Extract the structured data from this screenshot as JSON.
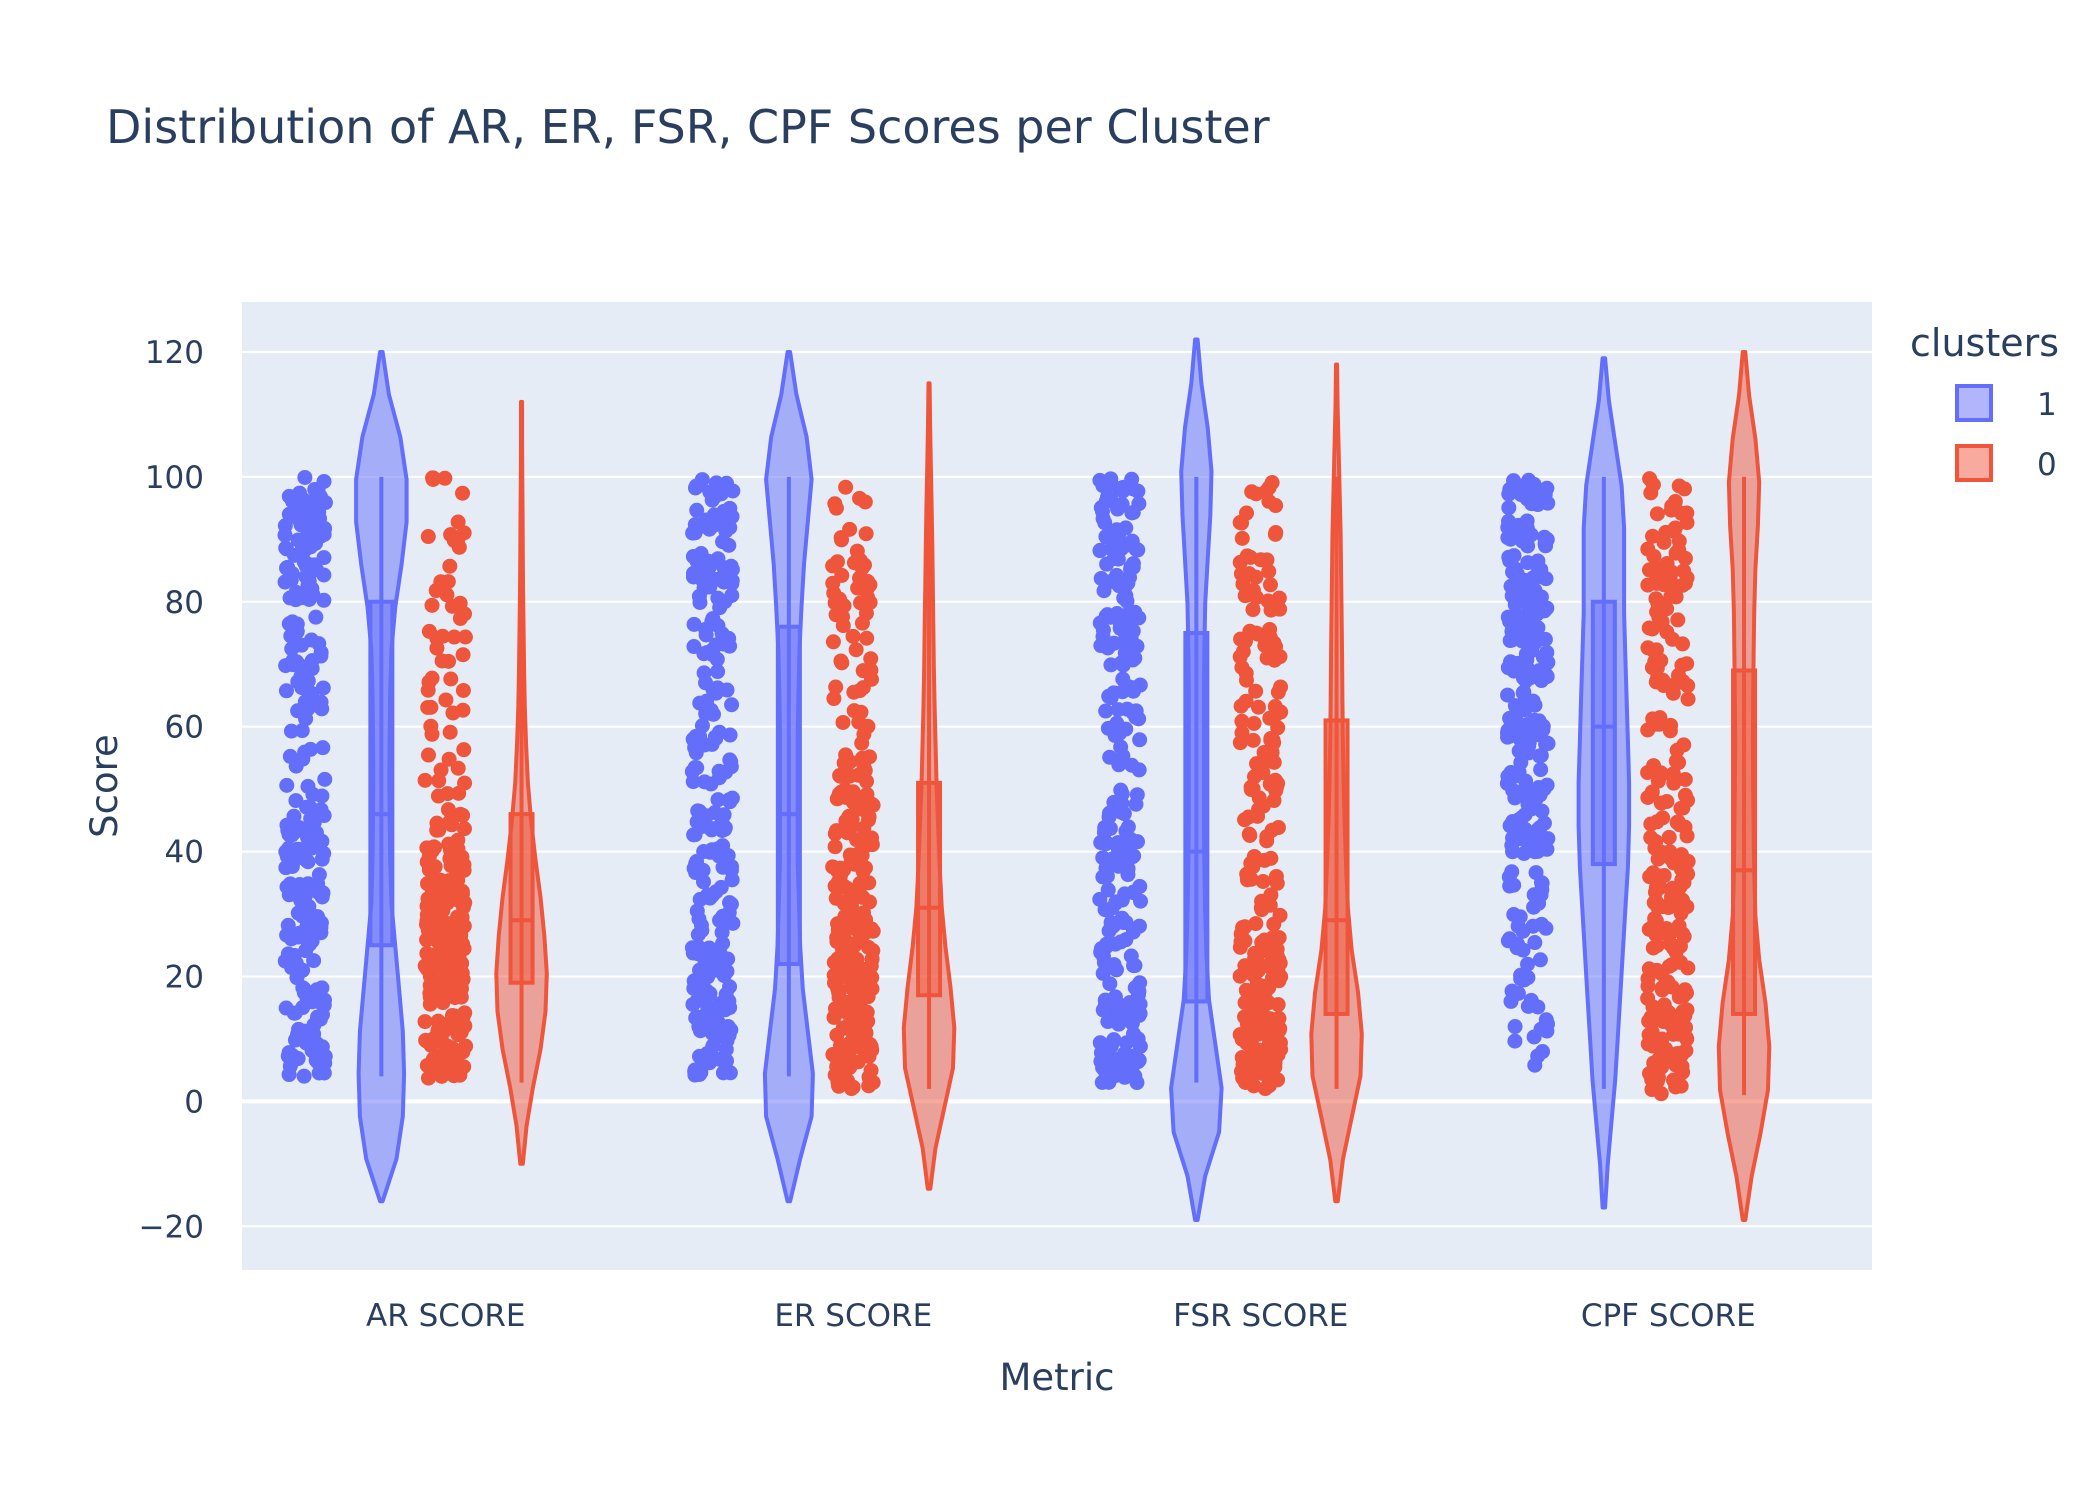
{
  "chart_data": {
    "type": "violin",
    "title": "Distribution of AR, ER, FSR, CPF Scores per Cluster",
    "xlabel": "Metric",
    "ylabel": "Score",
    "ylim": [
      -27,
      128
    ],
    "yticks": [
      -20,
      0,
      20,
      40,
      60,
      80,
      100,
      120
    ],
    "ytick_labels": [
      "−20",
      "0",
      "20",
      "40",
      "60",
      "80",
      "100",
      "120"
    ],
    "categories": [
      "AR SCORE",
      "ER SCORE",
      "FSR SCORE",
      "CPF SCORE"
    ],
    "legend": {
      "title": "clusters",
      "position": "right"
    },
    "grid": true,
    "series": [
      {
        "name": "1",
        "color": "#636efa",
        "fill": "rgba(99,110,250,0.5)",
        "points_range": [
          [
            4,
            100
          ],
          [
            4,
            100
          ],
          [
            3,
            100
          ],
          [
            2,
            100
          ]
        ],
        "box": [
          {
            "q1": 25,
            "median": 46,
            "q3": 80,
            "min": 4,
            "max": 100
          },
          {
            "q1": 22,
            "median": 46,
            "q3": 76,
            "min": 4,
            "max": 100
          },
          {
            "q1": 16,
            "median": 40,
            "q3": 75,
            "min": 3,
            "max": 100
          },
          {
            "q1": 38,
            "median": 60,
            "q3": 80,
            "min": 2,
            "max": 100
          }
        ],
        "violin": [
          {
            "ymin": -16,
            "ymax": 120,
            "widths": [
              0.05,
              0.6,
              0.85,
              0.9,
              0.85,
              0.7,
              0.55,
              0.4,
              0.35,
              0.33,
              0.32,
              0.33,
              0.35,
              0.4,
              0.55,
              0.8,
              1.0,
              1.0,
              0.75,
              0.3,
              0.05
            ]
          },
          {
            "ymin": -16,
            "ymax": 120,
            "widths": [
              0.05,
              0.45,
              0.9,
              0.95,
              0.75,
              0.55,
              0.45,
              0.4,
              0.35,
              0.35,
              0.35,
              0.35,
              0.38,
              0.42,
              0.5,
              0.6,
              0.75,
              0.9,
              0.7,
              0.3,
              0.05
            ]
          },
          {
            "ymin": -19,
            "ymax": 122,
            "widths": [
              0.05,
              0.35,
              0.9,
              1.0,
              0.75,
              0.5,
              0.4,
              0.35,
              0.32,
              0.3,
              0.3,
              0.3,
              0.3,
              0.32,
              0.35,
              0.45,
              0.55,
              0.6,
              0.45,
              0.2,
              0.05
            ]
          },
          {
            "ymin": -17,
            "ymax": 119,
            "widths": [
              0.05,
              0.15,
              0.3,
              0.45,
              0.55,
              0.65,
              0.75,
              0.85,
              0.95,
              1.0,
              1.0,
              0.95,
              0.9,
              0.85,
              0.8,
              0.8,
              0.8,
              0.7,
              0.45,
              0.2,
              0.05
            ]
          }
        ]
      },
      {
        "name": "0",
        "color": "#ef553b",
        "fill": "rgba(239,85,59,0.5)",
        "points_range": [
          [
            3,
            100
          ],
          [
            2,
            99
          ],
          [
            2,
            100
          ],
          [
            1,
            100
          ]
        ],
        "box": [
          {
            "q1": 19,
            "median": 29,
            "q3": 46,
            "min": 3,
            "max": 84
          },
          {
            "q1": 17,
            "median": 31,
            "q3": 51,
            "min": 2,
            "max": 99
          },
          {
            "q1": 14,
            "median": 29,
            "q3": 61,
            "min": 2,
            "max": 100
          },
          {
            "q1": 14,
            "median": 37,
            "q3": 69,
            "min": 1,
            "max": 100
          }
        ],
        "violin": [
          {
            "ymin": -10,
            "ymax": 112,
            "widths": [
              0.05,
              0.2,
              0.45,
              0.75,
              0.95,
              1.0,
              0.9,
              0.75,
              0.55,
              0.38,
              0.25,
              0.18,
              0.13,
              0.1,
              0.08,
              0.06,
              0.05,
              0.04,
              0.03,
              0.02,
              0.02
            ]
          },
          {
            "ymin": -14,
            "ymax": 115,
            "widths": [
              0.05,
              0.25,
              0.6,
              0.95,
              1.0,
              0.85,
              0.65,
              0.5,
              0.42,
              0.36,
              0.3,
              0.26,
              0.22,
              0.19,
              0.17,
              0.15,
              0.13,
              0.1,
              0.07,
              0.04,
              0.02
            ]
          },
          {
            "ymin": -16,
            "ymax": 118,
            "widths": [
              0.05,
              0.25,
              0.6,
              0.95,
              1.0,
              0.85,
              0.6,
              0.45,
              0.38,
              0.32,
              0.28,
              0.25,
              0.23,
              0.22,
              0.2,
              0.18,
              0.16,
              0.12,
              0.08,
              0.04,
              0.02
            ]
          },
          {
            "ymin": -19,
            "ymax": 120,
            "widths": [
              0.05,
              0.3,
              0.65,
              0.95,
              1.0,
              0.85,
              0.6,
              0.45,
              0.4,
              0.38,
              0.36,
              0.35,
              0.36,
              0.38,
              0.4,
              0.45,
              0.55,
              0.6,
              0.45,
              0.2,
              0.05
            ]
          }
        ]
      }
    ]
  }
}
